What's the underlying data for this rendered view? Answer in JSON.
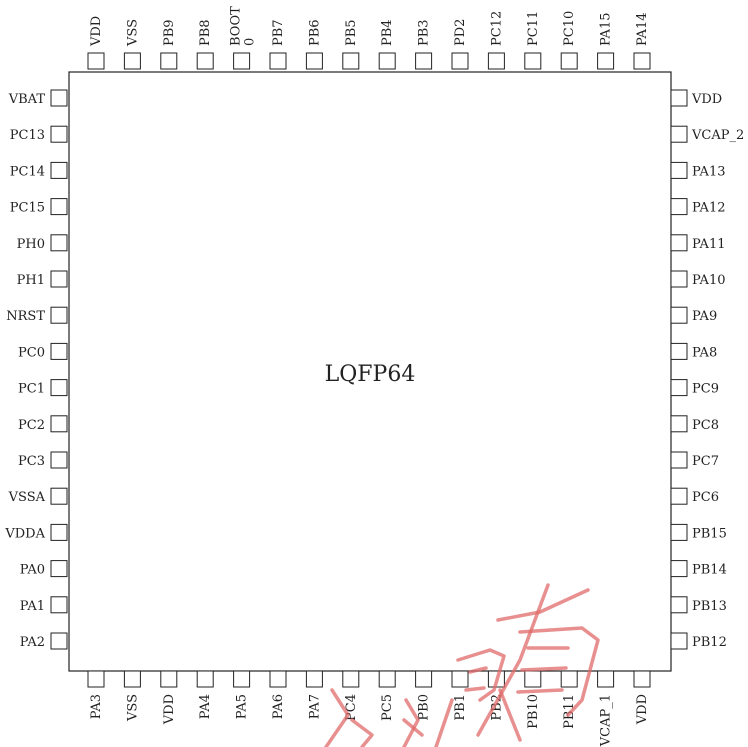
{
  "package": {
    "name": "LQFP64"
  },
  "pins": {
    "top": [
      "VDD",
      "VSS",
      "PB9",
      "PB8",
      "BOOT\n0",
      "PB7",
      "PB6",
      "PB5",
      "PB4",
      "PB3",
      "PD2",
      "PC12",
      "PC11",
      "PC10",
      "PA15",
      "PA14"
    ],
    "left": [
      "VBAT",
      "PC13",
      "PC14",
      "PC15",
      "PH0",
      "PH1",
      "NRST",
      "PC0",
      "PC1",
      "PC2",
      "PC3",
      "VSSA",
      "VDDA",
      "PA0",
      "PA1",
      "PA2"
    ],
    "right": [
      "VDD",
      "VCAP_2",
      "PA13",
      "PA12",
      "PA11",
      "PA10",
      "PA9",
      "PA8",
      "PC9",
      "PC8",
      "PC7",
      "PC6",
      "PB15",
      "PB14",
      "PB13",
      "PB12"
    ],
    "bottom": [
      "PA3",
      "VSS",
      "VDD",
      "PA4",
      "PA5",
      "PA6",
      "PA7",
      "PC4",
      "PC5",
      "PB0",
      "PB1",
      "PB2",
      "PB10",
      "PB11",
      "VCAP_1",
      "VDD"
    ]
  },
  "colors": {
    "outline": "#222222",
    "text": "#222222",
    "watermark": "#e06a6a"
  }
}
